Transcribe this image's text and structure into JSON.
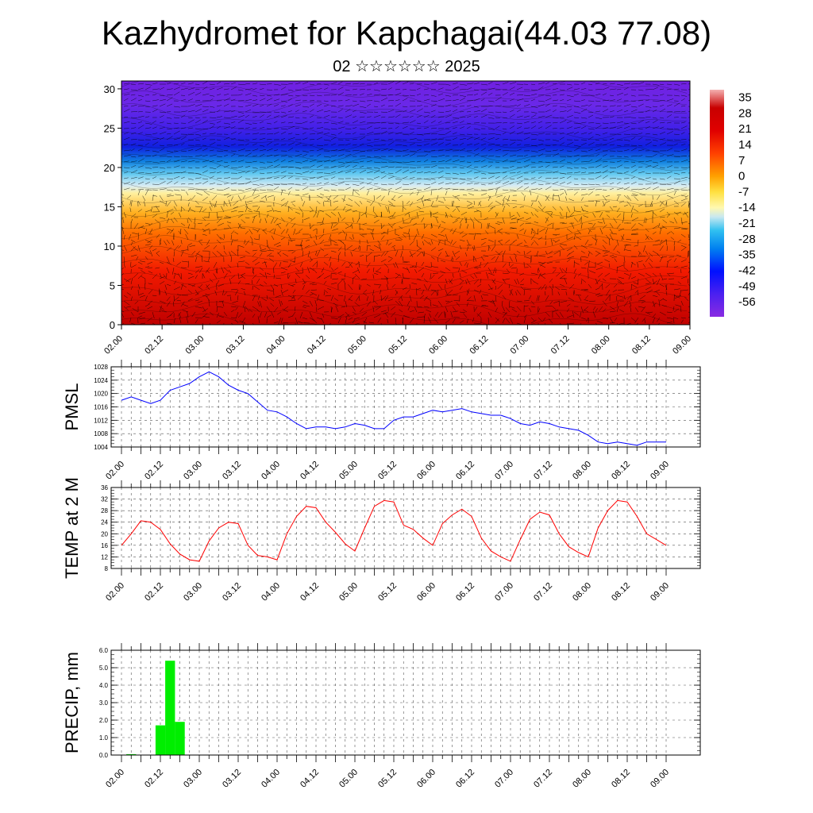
{
  "title": "Kazhydromet for Kapchagai(44.03 77.08)",
  "subtitle": "02 ☆☆☆☆☆☆ 2025",
  "time_ticks": [
    "02.00",
    "02.12",
    "03.00",
    "03.12",
    "04.00",
    "04.12",
    "05.00",
    "05.12",
    "06.00",
    "06.12",
    "07.00",
    "07.12",
    "08.00",
    "08.12",
    "09.00"
  ],
  "colors": {
    "pmsl_line": "#0000ff",
    "temp_line": "#ff0000",
    "precip_bar": "#00ee00"
  },
  "chart_data": [
    {
      "type": "heatmap",
      "description_label": "temperature cross-section with wind vectors",
      "x_ticks": [
        "02.00",
        "02.12",
        "03.00",
        "03.12",
        "04.00",
        "04.12",
        "05.00",
        "05.12",
        "06.00",
        "06.12",
        "07.00",
        "07.12",
        "08.00",
        "08.12",
        "09.00"
      ],
      "y_ticks": [
        0,
        5,
        10,
        15,
        20,
        25,
        30
      ],
      "ylim": [
        0,
        31
      ],
      "colorbar_labels": [
        35,
        28,
        21,
        14,
        7,
        0,
        -7,
        -14,
        -21,
        -28,
        -35,
        -42,
        -49,
        -56
      ],
      "colorbar_range": [
        -63,
        38
      ]
    },
    {
      "type": "line",
      "ylabel": "PMSL",
      "ylim": [
        1004,
        1028
      ],
      "y_ticks": [
        1004,
        1008,
        1012,
        1016,
        1020,
        1024,
        1028
      ],
      "x": [
        0,
        0.25,
        0.5,
        0.75,
        1,
        1.25,
        1.5,
        1.75,
        2,
        2.25,
        2.5,
        2.75,
        3,
        3.25,
        3.5,
        3.75,
        4,
        4.25,
        4.5,
        4.75,
        5,
        5.25,
        5.5,
        5.75,
        6,
        6.25,
        6.5,
        6.75,
        7,
        7.25,
        7.5,
        7.75,
        8,
        8.25,
        8.5,
        8.75,
        9,
        9.25,
        9.5,
        9.75,
        10,
        10.25,
        10.5,
        10.75,
        11,
        11.25,
        11.5,
        11.75,
        12,
        12.25,
        12.5,
        12.75,
        13,
        13.25,
        13.5,
        13.75,
        14
      ],
      "series": [
        {
          "values": [
            1018,
            1019,
            1018,
            1017,
            1018,
            1021,
            1022,
            1023,
            1025,
            1026.5,
            1025,
            1022.5,
            1021,
            1020,
            1017.5,
            1015,
            1014.5,
            1013,
            1011,
            1009.5,
            1010,
            1010,
            1009.5,
            1010,
            1011,
            1010.5,
            1009.5,
            1009.5,
            1012,
            1013,
            1013,
            1014,
            1015,
            1014.5,
            1015,
            1015.5,
            1014.5,
            1014,
            1013.5,
            1013.5,
            1012.5,
            1011,
            1010.5,
            1011.5,
            1011,
            1010,
            1009.5,
            1009,
            1007.5,
            1005.5,
            1005,
            1005.5,
            1005,
            1004.5,
            1005.5,
            1005.5,
            1005.5
          ]
        }
      ]
    },
    {
      "type": "line",
      "ylabel": "TEMP at 2 M",
      "ylim": [
        8,
        36
      ],
      "y_ticks": [
        8,
        12,
        16,
        20,
        24,
        28,
        32,
        36
      ],
      "x": [
        0,
        0.25,
        0.5,
        0.75,
        1,
        1.25,
        1.5,
        1.75,
        2,
        2.25,
        2.5,
        2.75,
        3,
        3.25,
        3.5,
        3.75,
        4,
        4.25,
        4.5,
        4.75,
        5,
        5.25,
        5.5,
        5.75,
        6,
        6.25,
        6.5,
        6.75,
        7,
        7.25,
        7.5,
        7.75,
        8,
        8.25,
        8.5,
        8.75,
        9,
        9.25,
        9.5,
        9.75,
        10,
        10.25,
        10.5,
        10.75,
        11,
        11.25,
        11.5,
        11.75,
        12,
        12.25,
        12.5,
        12.75,
        13,
        13.25,
        13.5,
        13.75,
        14
      ],
      "series": [
        {
          "values": [
            16,
            20,
            24.5,
            24,
            21.5,
            16.5,
            13,
            11,
            10.5,
            17.5,
            22,
            24,
            23.5,
            16,
            12.5,
            12,
            11,
            20,
            26,
            29.5,
            29,
            24,
            20.5,
            16.5,
            14,
            22,
            29.5,
            31.5,
            31,
            23,
            21.5,
            18.5,
            16,
            23.5,
            26.5,
            28.5,
            26,
            18.5,
            14,
            12,
            10.5,
            18,
            25,
            27.5,
            26.5,
            20,
            15.5,
            13.5,
            12,
            22,
            28,
            31.5,
            31,
            26,
            20,
            18,
            16
          ]
        }
      ]
    },
    {
      "type": "bar",
      "ylabel": "PRECIP, mm",
      "ylim": [
        0,
        6
      ],
      "y_ticks": [
        "0.0",
        "1.0",
        "2.0",
        "3.0",
        "4.0",
        "5.0",
        "6.0"
      ],
      "x": [
        0.25,
        1,
        1.25,
        1.5
      ],
      "values": [
        0.05,
        1.7,
        5.4,
        1.9
      ],
      "bar_width": 0.25
    }
  ]
}
